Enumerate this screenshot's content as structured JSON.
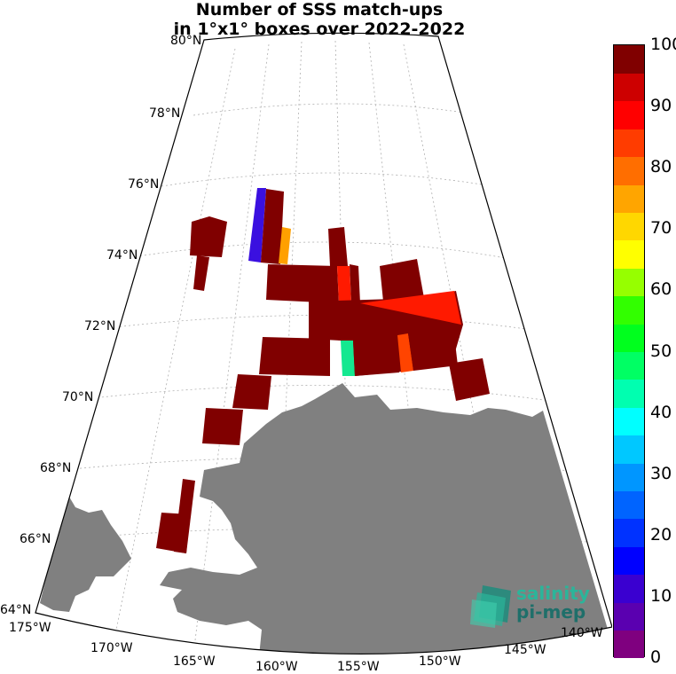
{
  "title_line1": "Number of SSS match-ups",
  "title_line2": "in 1°x1° boxes over 2022-2022",
  "lat_labels": [
    "80°N",
    "78°N",
    "76°N",
    "74°N",
    "72°N",
    "70°N",
    "68°N",
    "66°N",
    "64°N"
  ],
  "lon_labels": [
    "175°W",
    "170°W",
    "165°W",
    "160°W",
    "155°W",
    "150°W",
    "145°W",
    "140°W"
  ],
  "colorbar": {
    "min": 0,
    "max": 100,
    "ticks": [
      "100",
      "90",
      "80",
      "70",
      "60",
      "50",
      "40",
      "30",
      "20",
      "10",
      "0"
    ],
    "colors": [
      "#7f007f",
      "#5a00b0",
      "#3a00d0",
      "#0000ff",
      "#0032ff",
      "#0064ff",
      "#0096ff",
      "#00c8ff",
      "#00ffff",
      "#00ffb0",
      "#00ff64",
      "#00ff1e",
      "#32ff00",
      "#96ff00",
      "#ffff00",
      "#ffd700",
      "#ffa500",
      "#ff6e00",
      "#ff3c00",
      "#ff0000",
      "#cd0000",
      "#800000"
    ]
  },
  "land_color": "#808080",
  "cell_colors": {
    "max": "#800000",
    "blue": "#3a10e0",
    "orange": "#ffa000",
    "red": "#ff1a00",
    "redorange": "#ff4400",
    "green": "#14e890"
  },
  "logo": {
    "line1": "salinity",
    "line2": "pi-mep"
  }
}
